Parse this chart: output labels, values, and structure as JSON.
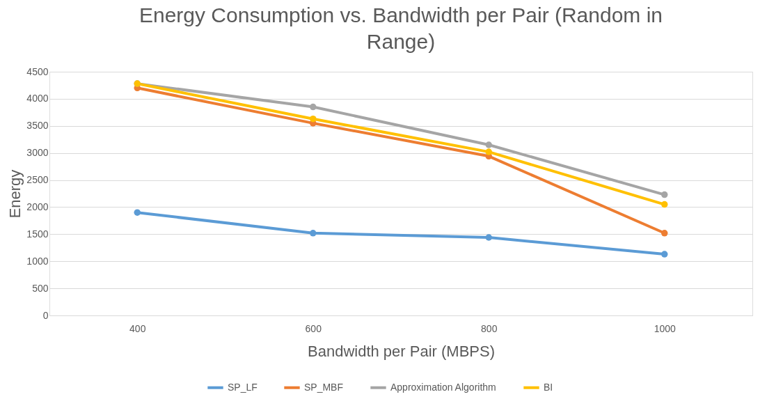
{
  "chart_data": {
    "type": "line",
    "title": "Energy Consumption  vs. Bandwidth per Pair (Random in Range)",
    "xlabel": "Bandwidth per Pair (MBPS)",
    "ylabel": "Energy",
    "categories": [
      "400",
      "600",
      "800",
      "1000"
    ],
    "series": [
      {
        "name": "SP_LF",
        "color": "#5b9bd5",
        "values": [
          1900,
          1520,
          1440,
          1130
        ]
      },
      {
        "name": "SP_MBF",
        "color": "#ed7d31",
        "values": [
          4200,
          3550,
          2940,
          1520
        ]
      },
      {
        "name": "Approximation Algorithm",
        "color": "#a5a5a5",
        "values": [
          4280,
          3850,
          3150,
          2230
        ]
      },
      {
        "name": "BI",
        "color": "#ffc000",
        "values": [
          4280,
          3630,
          3020,
          2050
        ]
      }
    ],
    "ylim": [
      0,
      4500
    ],
    "yticks": [
      0,
      500,
      1000,
      1500,
      2000,
      2500,
      3000,
      3500,
      4000,
      4500
    ],
    "grid": "y",
    "legend": "bottom",
    "marker": "circle",
    "line_style": "solid"
  }
}
